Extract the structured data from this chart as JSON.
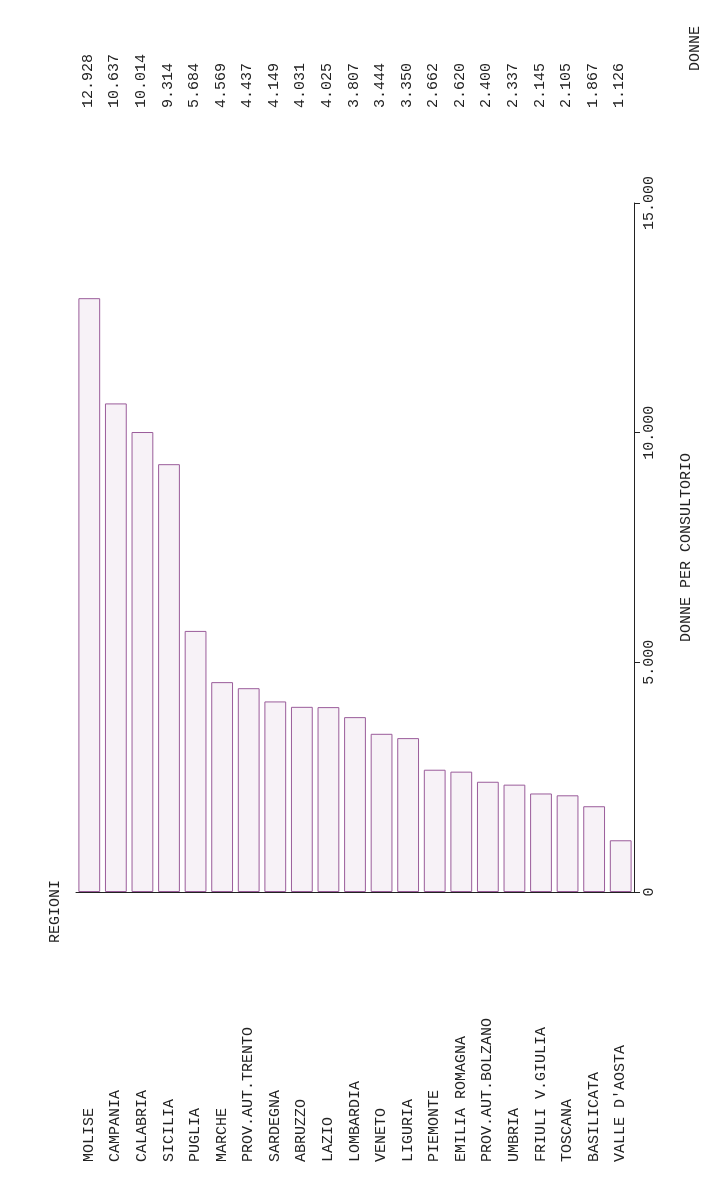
{
  "chart_data": {
    "type": "bar",
    "ylabel": "DONNE PER CONSULTORIO",
    "annotations": [
      "REGIONI",
      "DONNE"
    ],
    "categories": [
      "MOLISE",
      "CAMPANIA",
      "CALABRIA",
      "SICILIA",
      "PUGLIA",
      "MARCHE",
      "PROV.AUT.TRENTO",
      "SARDEGNA",
      "ABRUZZO",
      "LAZIO",
      "LOMBARDIA",
      "VENETO",
      "LIGURIA",
      "PIEMONTE",
      "EMILIA ROMAGNA",
      "PROV.AUT.BOLZANO",
      "UMBRIA",
      "FRIULI V.GIULIA",
      "TOSCANA",
      "BASILICATA",
      "VALLE D'AOSTA"
    ],
    "values": [
      12928,
      10637,
      10014,
      9314,
      5684,
      4569,
      4437,
      4149,
      4031,
      4025,
      3807,
      3444,
      3350,
      2662,
      2620,
      2400,
      2337,
      2145,
      2105,
      1867,
      1126
    ],
    "value_labels": [
      "12.928",
      "10.637",
      "10.014",
      "9.314",
      "5.684",
      "4.569",
      "4.437",
      "4.149",
      "4.031",
      "4.025",
      "3.807",
      "3.444",
      "3.350",
      "2.662",
      "2.620",
      "2.400",
      "2.337",
      "2.145",
      "2.105",
      "1.867",
      "1.126"
    ],
    "color": "#9a5c9a",
    "ylim": [
      0,
      15000
    ],
    "yticks": [
      {
        "value": 0,
        "label": "0"
      },
      {
        "value": 5000,
        "label": "5.000"
      },
      {
        "value": 10000,
        "label": "10.000"
      },
      {
        "value": 15000,
        "label": "15.000"
      }
    ]
  }
}
